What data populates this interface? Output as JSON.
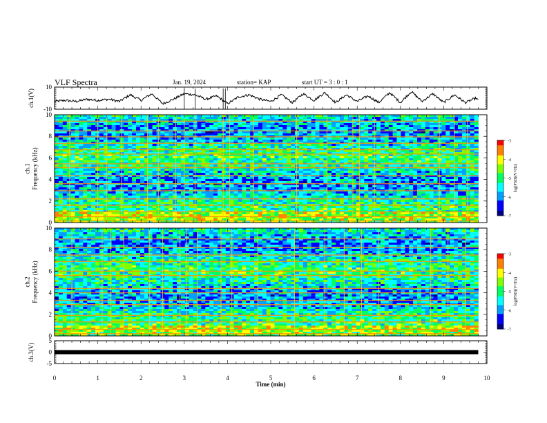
{
  "header": {
    "title": "VLF Spectra",
    "date": "Jan. 19, 2024",
    "station": "station= KAP",
    "start": "start UT =  3 : 0  : 1"
  },
  "chart_data": [
    {
      "panel": "ch1-waveform",
      "type": "line",
      "ylabel": "ch.1(V)",
      "ylim": [
        -10,
        10
      ],
      "yticks": [
        "10",
        "-10"
      ],
      "xlim": [
        0,
        10
      ],
      "series": [
        {
          "color": "#000000",
          "x": [
            0,
            0.25,
            0.5,
            0.75,
            1.0,
            1.25,
            1.5,
            1.75,
            2.0,
            2.25,
            2.5,
            2.75,
            3.0,
            3.25,
            3.5,
            3.75,
            4.0,
            4.25,
            4.5,
            4.75,
            5.0,
            5.25,
            5.5,
            5.75,
            6.0,
            6.25,
            6.5,
            6.75,
            7.0,
            7.25,
            7.5,
            7.75,
            8.0,
            8.25,
            8.5,
            8.75,
            9.0,
            9.25,
            9.5,
            9.75,
            9.8
          ],
          "values": [
            -3,
            -2,
            -3,
            -1,
            -2,
            -1,
            -3,
            3,
            -2,
            4,
            -5,
            -1,
            4,
            3,
            -1,
            2,
            -5,
            1,
            3,
            -1,
            -3,
            3,
            -4,
            4,
            -2,
            5,
            -4,
            3,
            -3,
            2,
            -4,
            5,
            -4,
            6,
            -3,
            4,
            -4,
            3,
            -4,
            0,
            -2
          ]
        }
      ]
    },
    {
      "panel": "ch1-spectrogram",
      "type": "heatmap",
      "ylabel": "ch.1\nFrequency  (kHz)",
      "ylim": [
        0,
        10
      ],
      "yticks": [
        "0",
        "2",
        "4",
        "6",
        "8",
        "10"
      ],
      "xlim": [
        0,
        10
      ],
      "colorbar": {
        "label": "log(PSD)(V²/Hz)",
        "ticks": [
          "-3",
          "-4",
          "-5",
          "-6",
          "-7"
        ],
        "range": [
          -7,
          -3
        ]
      },
      "bands_khz": [
        0.15,
        0.55,
        1.0,
        1.6,
        2.2,
        2.95,
        3.6,
        4.35,
        5.1,
        5.45,
        6.35,
        6.75,
        7.35,
        7.95,
        8.5,
        9.4
      ],
      "transient_times_min": [
        0.35,
        1.0,
        1.2,
        1.55,
        2.15,
        2.4,
        2.8,
        3.0,
        3.25,
        3.9,
        4.05,
        4.6,
        5.6,
        6.3,
        6.9,
        7.05,
        7.4,
        8.9,
        9.25,
        9.55
      ]
    },
    {
      "panel": "ch2-spectrogram",
      "type": "heatmap",
      "ylabel": "ch.2\nFrequency  (kHz)",
      "ylim": [
        0,
        10
      ],
      "yticks": [
        "0",
        "2",
        "4",
        "6",
        "8",
        "10"
      ],
      "xlim": [
        0,
        10
      ],
      "colorbar": {
        "label": "log(PSD)(V²/Hz)",
        "ticks": [
          "-3",
          "-4",
          "-5",
          "-6",
          "-7"
        ],
        "range": [
          -7,
          -3
        ]
      },
      "bands_khz": [
        0.2,
        0.6,
        1.3,
        1.9,
        2.9,
        3.3,
        4.0,
        4.4,
        5.6,
        6.0,
        6.9,
        7.5,
        8.2,
        9.0
      ],
      "transient_times_min": [
        0.4,
        1.1,
        1.3,
        1.6,
        2.2,
        2.5,
        2.9,
        3.05,
        3.3,
        3.85,
        4.1,
        4.7,
        5.55,
        6.25,
        6.7,
        7.1,
        7.5,
        8.7,
        9.1,
        9.5
      ]
    },
    {
      "panel": "ch3-waveform",
      "type": "line",
      "ylabel": "ch.3(V)",
      "ylim": [
        -5,
        5
      ],
      "yticks": [
        "5",
        "0",
        "-5"
      ],
      "xlim": [
        0,
        10
      ],
      "series": [
        {
          "color": "#000000",
          "x": [
            0,
            9.8
          ],
          "values": [
            0,
            0
          ]
        }
      ]
    }
  ],
  "xaxis": {
    "label": "Time  (min)",
    "ticks": [
      "0",
      "1",
      "2",
      "3",
      "4",
      "5",
      "6",
      "7",
      "8",
      "9",
      "10"
    ]
  },
  "colors": {
    "colormap": [
      "#000080",
      "#0000ff",
      "#00a0ff",
      "#00ffff",
      "#00ff60",
      "#80ff00",
      "#ffff00",
      "#ff8000",
      "#ff0000"
    ]
  }
}
